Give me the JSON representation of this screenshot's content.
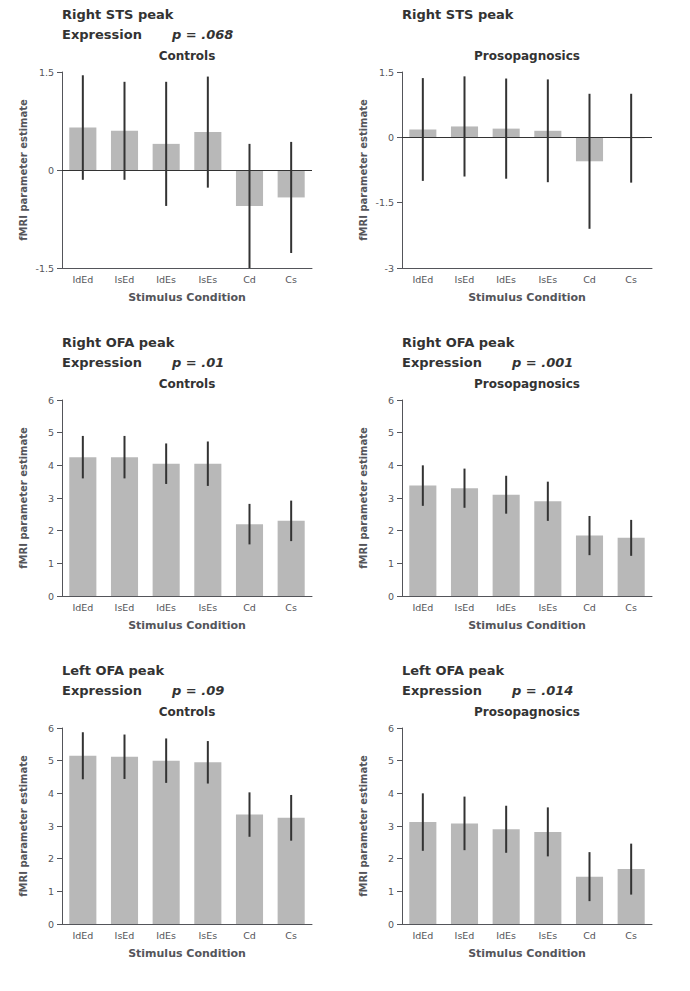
{
  "chart_data": [
    {
      "type": "bar",
      "title": "Right STS peak",
      "subtitle": "Controls",
      "annotations": [
        "Expression",
        "p = .068"
      ],
      "x_label": "Stimulus Condition",
      "y_label": "fMRI parameter estimate",
      "categories": [
        "IdEd",
        "IsEd",
        "IdEs",
        "IsEs",
        "Cd",
        "Cs"
      ],
      "values": [
        0.65,
        0.6,
        0.4,
        0.58,
        -0.55,
        -0.42
      ],
      "errors": [
        0.8,
        0.75,
        0.95,
        0.85,
        0.95,
        0.85
      ],
      "color": "#b8b8b8",
      "ylim": [
        -1.5,
        1.5
      ],
      "yticks": [
        -1.5,
        0,
        1.5
      ],
      "grid": false
    },
    {
      "type": "bar",
      "title": "Right STS peak",
      "subtitle": "Prosopagnosics",
      "x_label": "Stimulus Condition",
      "y_label": "fMRI parameter estimate",
      "categories": [
        "IdEd",
        "IsEd",
        "IdEs",
        "IsEs",
        "Cd",
        "Cs"
      ],
      "values": [
        0.18,
        0.25,
        0.2,
        0.15,
        -0.55,
        -0.02
      ],
      "errors": [
        1.18,
        1.15,
        1.15,
        1.18,
        1.55,
        1.02
      ],
      "color": "#b8b8b8",
      "ylim": [
        -3,
        1.5
      ],
      "yticks": [
        -3,
        -1.5,
        0,
        1.5
      ],
      "grid": false
    },
    {
      "type": "bar",
      "title": "Right OFA peak",
      "subtitle": "Controls",
      "annotations": [
        "Expression",
        "p = .01"
      ],
      "x_label": "Stimulus Condition",
      "y_label": "fMRI parameter estimate",
      "categories": [
        "IdEd",
        "IsEd",
        "IdEs",
        "IsEs",
        "Cd",
        "Cs"
      ],
      "values": [
        4.25,
        4.25,
        4.05,
        4.05,
        2.2,
        2.3
      ],
      "errors": [
        0.65,
        0.65,
        0.62,
        0.68,
        0.62,
        0.62
      ],
      "color": "#b8b8b8",
      "ylim": [
        0,
        6
      ],
      "yticks": [
        0,
        1,
        2,
        3,
        4,
        5,
        6
      ],
      "grid": false
    },
    {
      "type": "bar",
      "title": "Right OFA peak",
      "subtitle": "Prosopagnosics",
      "annotations": [
        "Expression",
        "p = .001"
      ],
      "x_label": "Stimulus Condition",
      "y_label": "fMRI parameter estimate",
      "categories": [
        "IdEd",
        "IsEd",
        "IdEs",
        "IsEs",
        "Cd",
        "Cs"
      ],
      "values": [
        3.38,
        3.3,
        3.1,
        2.9,
        1.85,
        1.78
      ],
      "errors": [
        0.62,
        0.6,
        0.58,
        0.6,
        0.6,
        0.55
      ],
      "color": "#b8b8b8",
      "ylim": [
        0,
        6
      ],
      "yticks": [
        0,
        1,
        2,
        3,
        4,
        5,
        6
      ],
      "grid": false
    },
    {
      "type": "bar",
      "title": "Left OFA peak",
      "subtitle": "Controls",
      "annotations": [
        "Expression",
        "p = .09"
      ],
      "x_label": "Stimulus Condition",
      "y_label": "fMRI parameter estimate",
      "categories": [
        "IdEd",
        "IsEd",
        "IdEs",
        "IsEs",
        "Cd",
        "Cs"
      ],
      "values": [
        5.15,
        5.12,
        5.0,
        4.95,
        3.35,
        3.25
      ],
      "errors": [
        0.72,
        0.68,
        0.68,
        0.65,
        0.68,
        0.7
      ],
      "color": "#b8b8b8",
      "ylim": [
        0,
        6
      ],
      "yticks": [
        0,
        1,
        2,
        3,
        4,
        5,
        6
      ],
      "grid": false
    },
    {
      "type": "bar",
      "title": "Left OFA peak",
      "subtitle": "Prosopagnosics",
      "annotations": [
        "Expression",
        "p = .014"
      ],
      "x_label": "Stimulus Condition",
      "y_label": "fMRI parameter estimate",
      "categories": [
        "IdEd",
        "IsEd",
        "IdEs",
        "IsEs",
        "Cd",
        "Cs"
      ],
      "values": [
        3.12,
        3.08,
        2.9,
        2.82,
        1.45,
        1.68
      ],
      "errors": [
        0.88,
        0.82,
        0.72,
        0.75,
        0.75,
        0.78
      ],
      "color": "#b8b8b8",
      "ylim": [
        0,
        6
      ],
      "yticks": [
        0,
        1,
        2,
        3,
        4,
        5,
        6
      ],
      "grid": false
    }
  ]
}
